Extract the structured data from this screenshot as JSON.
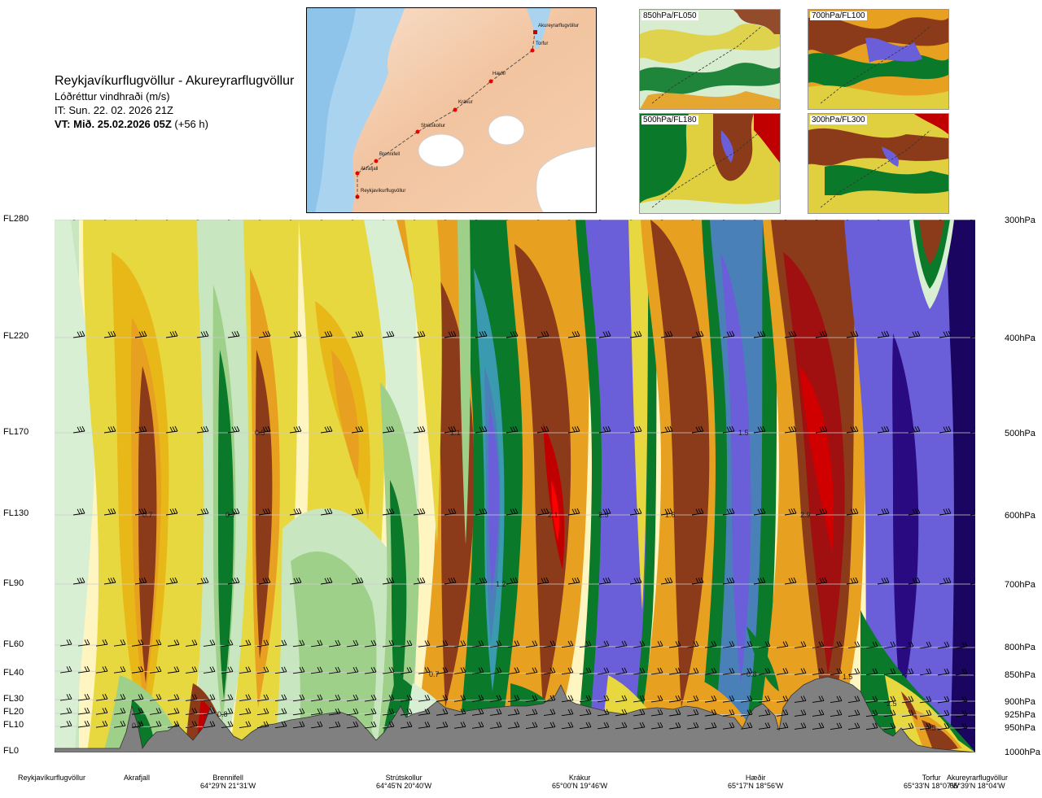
{
  "header": {
    "route": "Reykjavíkurflugvöllur - Akureyrarflugvöllur",
    "parameter": "Lóðréttur vindhraði (m/s)",
    "init_time": "IT: Sun. 22. 02. 2026 21Z",
    "valid_label": "VT: Mið. 25.02.2026 05Z",
    "valid_offset": " (+56 h)"
  },
  "map": {
    "places": [
      {
        "name": "Akureyrarflugvöllur"
      },
      {
        "name": "Torfur"
      },
      {
        "name": "Hæðir"
      },
      {
        "name": "Krákur"
      },
      {
        "name": "Strútskollur"
      },
      {
        "name": "Brennifell"
      },
      {
        "name": "Akrafjall"
      },
      {
        "name": "Reykjavíkurflugvöllur"
      }
    ]
  },
  "thumbnails": [
    {
      "label": "850hPa/FL050"
    },
    {
      "label": "700hPa/FL100"
    },
    {
      "label": "500hPa/FL180"
    },
    {
      "label": "300hPa/FL300"
    }
  ],
  "levels": [
    {
      "fl": "FL280",
      "hpa": "300hPa"
    },
    {
      "fl": "FL220",
      "hpa": "400hPa"
    },
    {
      "fl": "FL170",
      "hpa": "500hPa"
    },
    {
      "fl": "FL130",
      "hpa": "600hPa"
    },
    {
      "fl": "FL90",
      "hpa": "700hPa"
    },
    {
      "fl": "FL60",
      "hpa": "800hPa"
    },
    {
      "fl": "FL40",
      "hpa": "850hPa"
    },
    {
      "fl": "FL30",
      "hpa": "900hPa"
    },
    {
      "fl": "FL20",
      "hpa": "925hPa"
    },
    {
      "fl": "FL10",
      "hpa": "950hPa"
    },
    {
      "fl": "FL0",
      "hpa": "1000hPa"
    }
  ],
  "stations": [
    {
      "name": "Reykjavíkurflugvöllur",
      "coord": ""
    },
    {
      "name": "Akrafjall",
      "coord": ""
    },
    {
      "name": "Brennifell",
      "coord": "64°29'N 21°31'W"
    },
    {
      "name": "Strútskollur",
      "coord": "64°45'N 20°40'W"
    },
    {
      "name": "Krákur",
      "coord": "65°00'N 19°46'W"
    },
    {
      "name": "Hæðir",
      "coord": "65°17'N 18°56'W"
    },
    {
      "name": "Torfur",
      "coord": "65°33'N 18°07'W"
    },
    {
      "name": "Akureyrarflugvöllur",
      "coord": "65°39'N 18°04'W"
    }
  ],
  "contour_labels": [
    "0.7",
    "0.7",
    "0.5",
    "0.8",
    "0.7",
    "1.1",
    "2.1",
    "2.5",
    "1.6",
    "1.2",
    "1.5",
    "0.8",
    "2.9",
    "1.5",
    "0.7",
    "2.5",
    "0.5"
  ],
  "colors": {
    "terrain": "#808080",
    "strong_down": "#2a0a80",
    "down_purple": "#6a5fd8",
    "down_steel": "#4a80b8",
    "down_green": "#0a7a2a",
    "down_light": "#d9efd4",
    "neutral": "#fff5c0",
    "up_yellow": "#e8d840",
    "up_orange": "#e8a020",
    "up_brown": "#8b3a1a",
    "strong_up": "#d00000"
  }
}
